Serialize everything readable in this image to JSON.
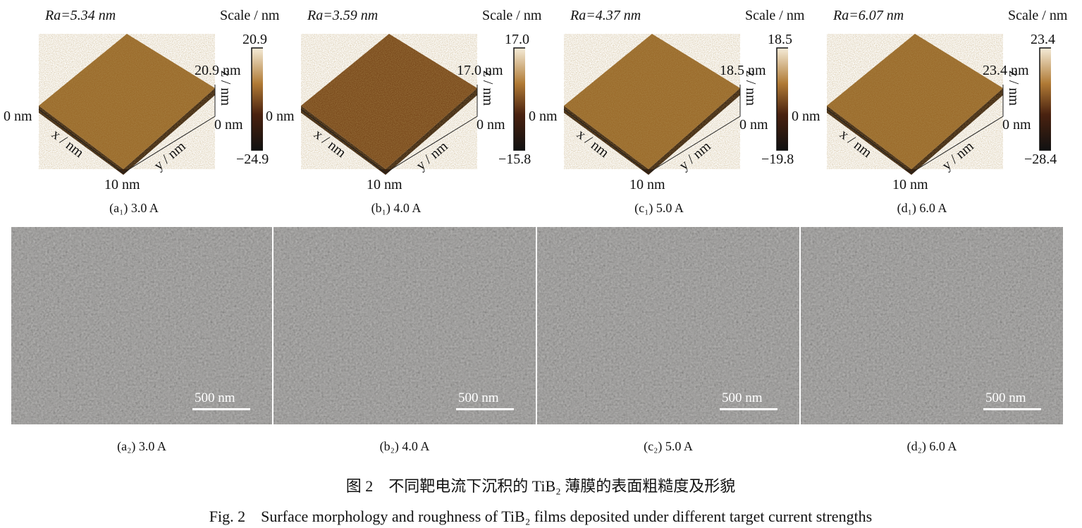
{
  "afm_panels": [
    {
      "id": "a1",
      "ra": "Ra=5.34 nm",
      "scale_title": "Scale / nm",
      "scale_max": "20.9",
      "scale_min": "−24.9",
      "z_top": "20.9 nm",
      "z_zero": "0 nm",
      "x_zero": "0 nm",
      "x_end": "10 nm",
      "x_label": "x / nm",
      "y_label": "y / nm",
      "z_label": "z / nm",
      "caption": "(a₁) 3.0 A"
    },
    {
      "id": "b1",
      "ra": "Ra=3.59 nm",
      "scale_title": "Scale / nm",
      "scale_max": "17.0",
      "scale_min": "−15.8",
      "z_top": "17.0 nm",
      "z_zero": "0 nm",
      "x_zero": "0 nm",
      "x_end": "10 nm",
      "x_label": "x / nm",
      "y_label": "y / nm",
      "z_label": "z / nm",
      "caption": "(b₁) 4.0 A"
    },
    {
      "id": "c1",
      "ra": "Ra=4.37 nm",
      "scale_title": "Scale / nm",
      "scale_max": "18.5",
      "scale_min": "−19.8",
      "z_top": "18.5 nm",
      "z_zero": "0 nm",
      "x_zero": "0 nm",
      "x_end": "10 nm",
      "x_label": "x / nm",
      "y_label": "y / nm",
      "z_label": "z / nm",
      "caption": "(c₁) 5.0 A"
    },
    {
      "id": "d1",
      "ra": "Ra=6.07 nm",
      "scale_title": "Scale / nm",
      "scale_max": "23.4",
      "scale_min": "−28.4",
      "z_top": "23.4 nm",
      "z_zero": "0 nm",
      "x_zero": "0 nm",
      "x_end": "10 nm",
      "x_label": "x / nm",
      "y_label": "y / nm",
      "z_label": "z / nm",
      "caption": "(d₁) 6.0 A"
    }
  ],
  "sem_panels": [
    {
      "id": "a2",
      "scale_bar": "500 nm",
      "caption": "(a₂) 3.0 A"
    },
    {
      "id": "b2",
      "scale_bar": "500 nm",
      "caption": "(b₂) 4.0 A"
    },
    {
      "id": "c2",
      "scale_bar": "500 nm",
      "caption": "(c₂) 5.0 A"
    },
    {
      "id": "d2",
      "scale_bar": "500 nm",
      "caption": "(d₂) 6.0 A"
    }
  ],
  "caption_cn": "图 2　不同靶电流下沉积的 TiB₂ 薄膜的表面粗糙度及形貌",
  "caption_en": "Fig. 2　Surface morphology and roughness of TiB₂ films deposited under different target current strengths",
  "colors": {
    "afm_surface": "#9a6a2a",
    "colorbar_top": "#f5ecd8",
    "colorbar_bottom": "#111111",
    "sem_gray": "#7d7b78"
  }
}
